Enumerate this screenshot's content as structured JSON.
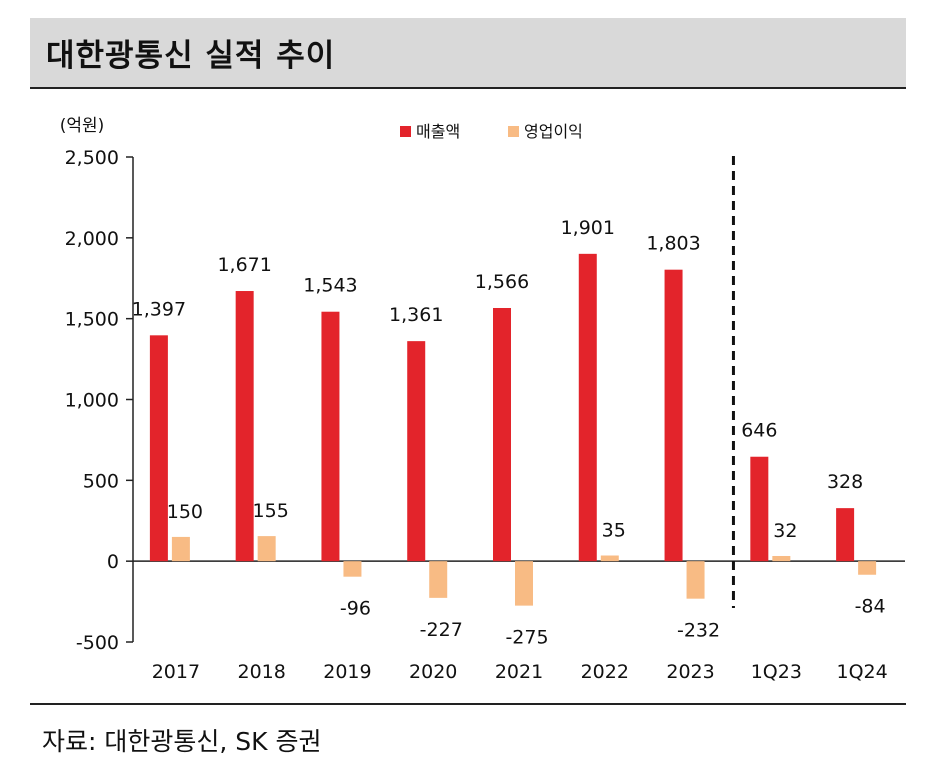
{
  "title": "대한광통신 실적 추이",
  "source": "자료: 대한광통신, SK 증권",
  "colors": {
    "revenue": "#e3242b",
    "op_income": "#f8bb84",
    "title_bg": "#d9d9d9"
  },
  "chart_data": {
    "type": "bar",
    "unit_label": "(억원)",
    "categories": [
      "2017",
      "2018",
      "2019",
      "2020",
      "2021",
      "2022",
      "2023",
      "1Q23",
      "1Q24"
    ],
    "series": [
      {
        "name": "매출액",
        "values": [
          1397,
          1671,
          1543,
          1361,
          1566,
          1901,
          1803,
          646,
          328
        ],
        "labels": [
          "1,397",
          "1,671",
          "1,543",
          "1,361",
          "1,566",
          "1,901",
          "1,803",
          "646",
          "328"
        ]
      },
      {
        "name": "영업이익",
        "values": [
          150,
          155,
          -96,
          -227,
          -275,
          35,
          -232,
          32,
          -84
        ],
        "labels": [
          "150",
          "155",
          "-96",
          "-227",
          "-275",
          "35",
          "-232",
          "32",
          "-84"
        ]
      }
    ],
    "ylim": [
      -500,
      2500
    ],
    "yticks": [
      2500,
      2000,
      1500,
      1000,
      500,
      0,
      -500
    ],
    "ytick_labels": [
      "2,500",
      "2,000",
      "1,500",
      "1,000",
      "500",
      "0",
      "-500"
    ],
    "separator_after": "2023",
    "legend": "top-center"
  }
}
